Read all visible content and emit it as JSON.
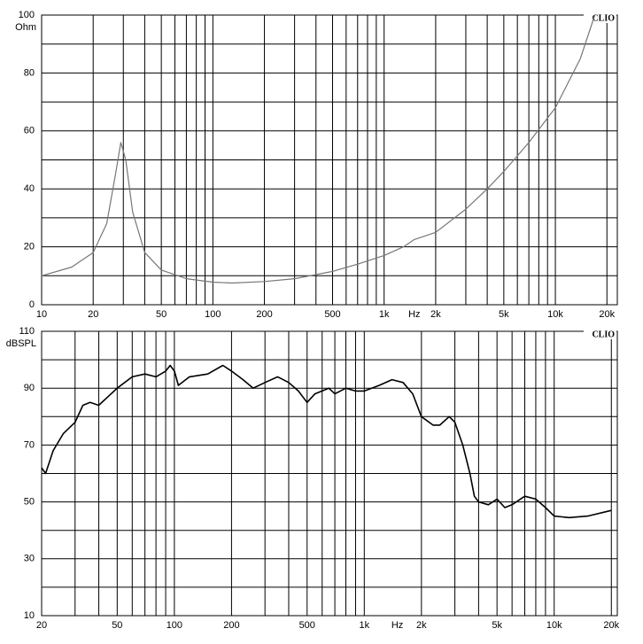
{
  "chart_data": [
    {
      "type": "line",
      "brand": "CLIO",
      "y_label": "Ohm",
      "x_label": "Hz",
      "log_x": true,
      "grid": true,
      "color": "#777777",
      "xlim": [
        10,
        23000
      ],
      "ylim": [
        0,
        100
      ],
      "xticks": [
        10,
        20,
        50,
        100,
        200,
        500,
        {
          "value": 1000,
          "label": "1k"
        },
        {
          "value": 2000,
          "label": "2k"
        },
        {
          "value": 5000,
          "label": "5k"
        },
        {
          "value": 10000,
          "label": "10k"
        },
        {
          "value": 20000,
          "label": "20k"
        }
      ],
      "minor_xticks": [
        30,
        40,
        60,
        70,
        80,
        90,
        300,
        400,
        600,
        700,
        800,
        900,
        3000,
        4000,
        6000,
        7000,
        8000,
        9000
      ],
      "yticks": [
        0,
        20,
        40,
        60,
        80,
        100
      ],
      "minor_yticks": [
        10,
        30,
        50,
        70,
        90
      ],
      "x": [
        10,
        15,
        20,
        24,
        27,
        29,
        31,
        34,
        40,
        50,
        70,
        100,
        130,
        200,
        300,
        500,
        700,
        1000,
        1300,
        1500,
        2000,
        3000,
        4000,
        5000,
        7000,
        10000,
        14000,
        17000
      ],
      "values": [
        10,
        13,
        18,
        28,
        45,
        56,
        50,
        32,
        18,
        12,
        9,
        7.8,
        7.5,
        8,
        9,
        11.5,
        14,
        17,
        20,
        22.5,
        25,
        33,
        40,
        46,
        56,
        68,
        85,
        100
      ]
    },
    {
      "type": "line",
      "brand": "CLIO",
      "y_label": "dBSPL",
      "x_label": "Hz",
      "log_x": true,
      "grid": true,
      "color": "#000000",
      "xlim": [
        20,
        21500
      ],
      "ylim": [
        10,
        110
      ],
      "xticks": [
        20,
        50,
        100,
        200,
        500,
        {
          "value": 1000,
          "label": "1k"
        },
        {
          "value": 2000,
          "label": "2k"
        },
        {
          "value": 5000,
          "label": "5k"
        },
        {
          "value": 10000,
          "label": "10k"
        },
        {
          "value": 20000,
          "label": "20k"
        }
      ],
      "minor_xticks": [
        30,
        40,
        60,
        70,
        80,
        90,
        300,
        400,
        600,
        700,
        800,
        900,
        3000,
        4000,
        6000,
        7000,
        8000,
        9000
      ],
      "yticks": [
        10,
        30,
        50,
        70,
        90,
        110
      ],
      "minor_yticks": [
        20,
        40,
        60,
        80,
        100
      ],
      "x": [
        20,
        21,
        23,
        26,
        30,
        33,
        36,
        40,
        50,
        60,
        70,
        80,
        90,
        95,
        100,
        105,
        120,
        150,
        180,
        200,
        230,
        260,
        300,
        350,
        400,
        450,
        500,
        550,
        650,
        700,
        800,
        900,
        1000,
        1200,
        1400,
        1600,
        1800,
        2000,
        2300,
        2500,
        2800,
        3000,
        3300,
        3600,
        3800,
        4000,
        4500,
        5000,
        5500,
        6000,
        7000,
        8000,
        9000,
        10000,
        12000,
        15000,
        20000
      ],
      "values": [
        62,
        60,
        68,
        74,
        78,
        84,
        85,
        84,
        90,
        94,
        95,
        94,
        96,
        98,
        96,
        91,
        94,
        95,
        98,
        96,
        93,
        90,
        92,
        94,
        92,
        89,
        85,
        88,
        90,
        88,
        90,
        89,
        89,
        91,
        93,
        92,
        88,
        80,
        77,
        77,
        80,
        78,
        70,
        60,
        52,
        50,
        49,
        51,
        48,
        49,
        52,
        51,
        48,
        45,
        44.5,
        45,
        47
      ]
    }
  ]
}
